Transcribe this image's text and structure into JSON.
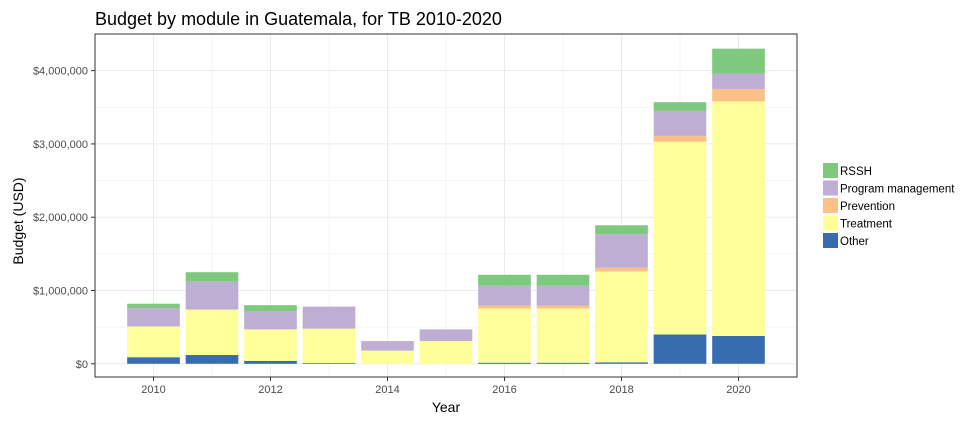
{
  "chart_data": {
    "type": "bar",
    "stacked": true,
    "title": "Budget by module in Guatemala, for TB 2010-2020",
    "xlabel": "Year",
    "ylabel": "Budget (USD)",
    "x": [
      2010,
      2011,
      2012,
      2013,
      2014,
      2015,
      2016,
      2017,
      2018,
      2019,
      2020
    ],
    "x_ticks": [
      "2010",
      "2012",
      "2014",
      "2016",
      "2018",
      "2020"
    ],
    "y_ticks": [
      "$0",
      "$1,000,000",
      "$2,000,000",
      "$3,000,000",
      "$4,000,000"
    ],
    "y_tick_values": [
      0,
      1000000,
      2000000,
      3000000,
      4000000
    ],
    "xlim": [
      2009,
      2021
    ],
    "ylim": [
      -180000,
      4500000
    ],
    "grid": true,
    "legend_position": "right",
    "series": [
      {
        "name": "Other",
        "color": "#386cb0",
        "values": [
          90000,
          120000,
          40000,
          10000,
          0,
          0,
          15000,
          15000,
          20000,
          400000,
          380000
        ]
      },
      {
        "name": "Treatment",
        "color": "#ffff99",
        "values": [
          420000,
          620000,
          430000,
          470000,
          180000,
          310000,
          740000,
          740000,
          1240000,
          2630000,
          3200000
        ]
      },
      {
        "name": "Prevention",
        "color": "#fdc086",
        "values": [
          0,
          0,
          0,
          0,
          0,
          0,
          40000,
          40000,
          50000,
          80000,
          170000
        ]
      },
      {
        "name": "Program management",
        "color": "#beaed4",
        "values": [
          250000,
          380000,
          250000,
          300000,
          130000,
          160000,
          270000,
          270000,
          460000,
          340000,
          210000
        ]
      },
      {
        "name": "RSSH",
        "color": "#7fc97f",
        "values": [
          60000,
          130000,
          80000,
          0,
          0,
          0,
          150000,
          150000,
          120000,
          120000,
          340000
        ]
      }
    ],
    "legend_order": [
      "RSSH",
      "Program management",
      "Prevention",
      "Treatment",
      "Other"
    ]
  }
}
